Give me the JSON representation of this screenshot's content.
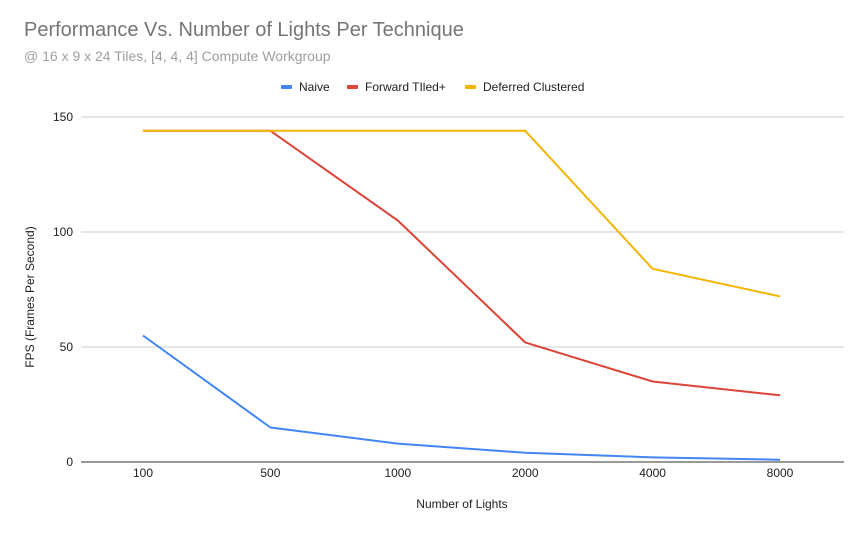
{
  "chart_data": {
    "type": "line",
    "title": "Performance Vs. Number of Lights Per Technique",
    "subtitle": "@ 16 x 9 x 24 Tiles, [4, 4, 4] Compute Workgroup",
    "xlabel": "Number of Lights",
    "ylabel": "FPS (Frames Per Second)",
    "categories": [
      "100",
      "500",
      "1000",
      "2000",
      "4000",
      "8000"
    ],
    "ylim": [
      0,
      150
    ],
    "yticks": [
      "0",
      "50",
      "100",
      "150"
    ],
    "grid": true,
    "legend_position": "top",
    "series": [
      {
        "name": "Naive",
        "color": "#4285f4",
        "values": [
          55,
          15,
          8,
          4,
          2,
          1
        ]
      },
      {
        "name": "Forward TIled+",
        "color": "#db4437",
        "values": [
          144,
          144,
          105,
          52,
          35,
          29
        ]
      },
      {
        "name": "Deferred Clustered",
        "color": "#f4b400",
        "values": [
          144,
          144,
          144,
          144,
          84,
          72
        ]
      }
    ]
  }
}
